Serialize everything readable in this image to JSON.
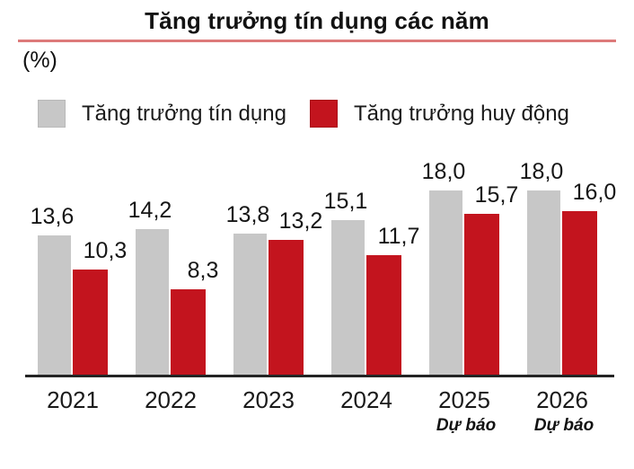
{
  "header": {
    "title": "Tăng trưởng tín dụng các năm",
    "unit_label": "(%)"
  },
  "legend": [
    {
      "label": "Tăng trưởng tín dụng",
      "color": "#C7C7C7",
      "border": "#B9B9B9"
    },
    {
      "label": "Tăng trưởng huy động",
      "color": "#C3141E",
      "border": "#A91019"
    }
  ],
  "colors": {
    "credit_bar": "#C7C7C7",
    "deposit_bar": "#C3141E",
    "title_underline": "#DD7A7A",
    "axis_line": "#242424"
  },
  "chart_data": {
    "type": "bar",
    "title": "Tăng trưởng tín dụng các năm",
    "unit": "%",
    "xlabel": "",
    "ylabel": "(%)",
    "categories": [
      "2021",
      "2022",
      "2023",
      "2024",
      "2025",
      "2026"
    ],
    "category_notes": [
      "",
      "",
      "",
      "",
      "Dự báo",
      "Dự báo"
    ],
    "series": [
      {
        "name": "Tăng trưởng tín dụng",
        "color": "#C7C7C7",
        "values": [
          13.6,
          14.2,
          13.8,
          15.1,
          18.0,
          18.0
        ],
        "labels": [
          "13,6",
          "14,2",
          "13,8",
          "15,1",
          "18,0",
          "18,0"
        ]
      },
      {
        "name": "Tăng trưởng huy động",
        "color": "#C3141E",
        "values": [
          10.3,
          8.3,
          13.2,
          11.7,
          15.7,
          16.0
        ],
        "labels": [
          "10,3",
          "8,3",
          "13,2",
          "11,7",
          "15,7",
          "16,0"
        ]
      }
    ],
    "ylim": [
      0,
      20
    ],
    "grid": false,
    "legend_position": "top",
    "value_labels_shown": true
  }
}
